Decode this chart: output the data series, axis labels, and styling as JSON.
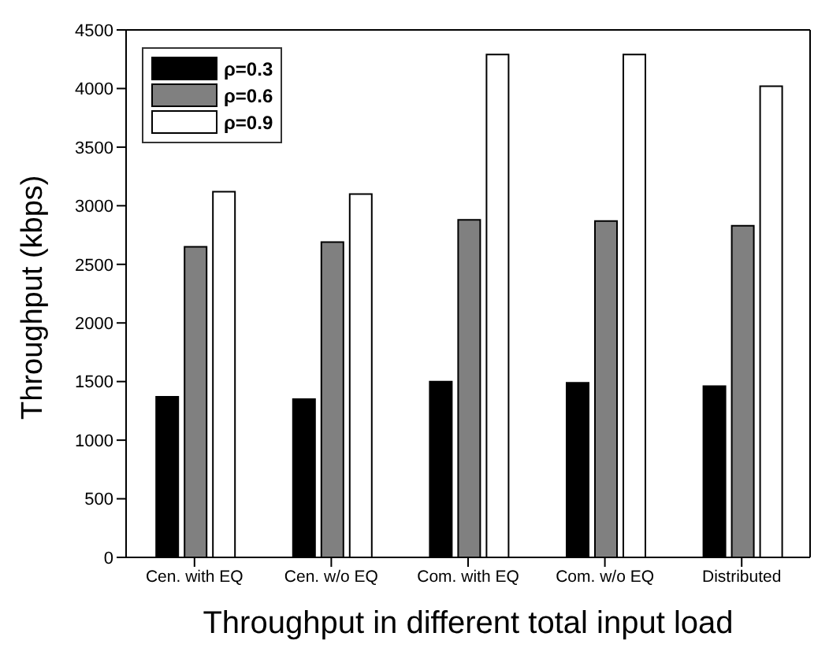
{
  "chart_data": {
    "type": "bar",
    "xlabel": "Throughput in different total input load",
    "ylabel": "Throughput (kbps)",
    "categories": [
      "Cen. with EQ",
      "Cen. w/o EQ",
      "Com. with EQ",
      "Com. w/o EQ",
      "Distributed"
    ],
    "series": [
      {
        "name": "ρ=0.3",
        "color": "#000000",
        "values": [
          1370,
          1350,
          1500,
          1490,
          1460
        ]
      },
      {
        "name": "ρ=0.6",
        "color": "#808080",
        "values": [
          2650,
          2690,
          2880,
          2870,
          2830
        ]
      },
      {
        "name": "ρ=0.9",
        "color": "#ffffff",
        "values": [
          3120,
          3100,
          4290,
          4290,
          4020
        ]
      }
    ],
    "ylim": [
      0,
      4500
    ],
    "yticks": [
      0,
      500,
      1000,
      1500,
      2000,
      2500,
      3000,
      3500,
      4000,
      4500
    ],
    "grid": false,
    "legend": "top left"
  }
}
